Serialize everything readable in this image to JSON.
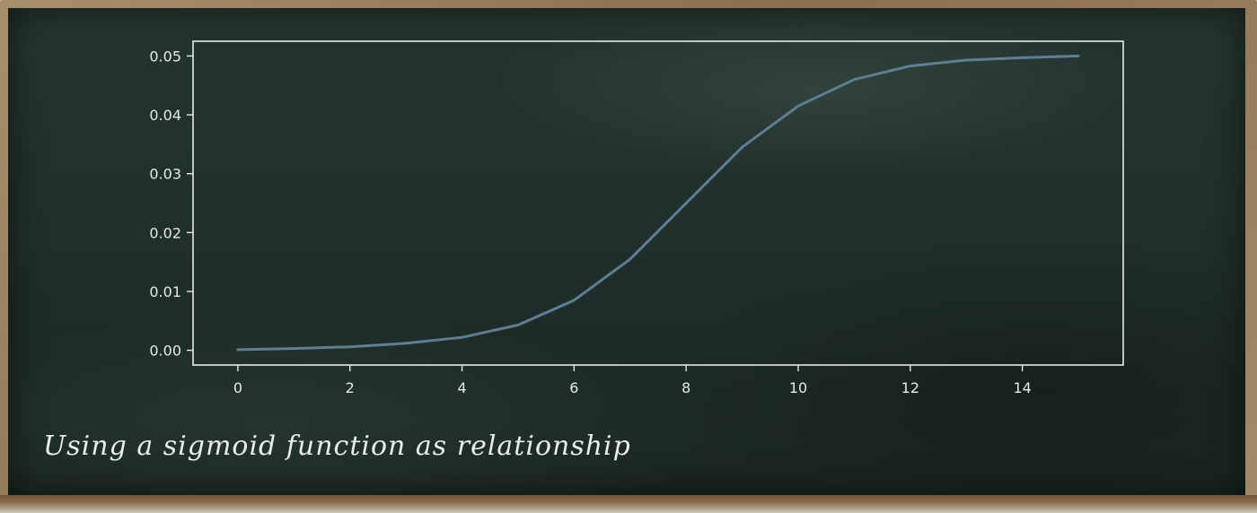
{
  "caption": "Using a sigmoid function as relationship",
  "colors": {
    "line": "#5f7e92",
    "axes": "#e6e9e7",
    "board": "#1f2e2a"
  },
  "chart_data": {
    "type": "line",
    "x": [
      0,
      1,
      2,
      3,
      4,
      5,
      6,
      7,
      8,
      9,
      10,
      11,
      12,
      13,
      14,
      15
    ],
    "series": [
      {
        "values": [
          0.0001,
          0.0003,
          0.0006,
          0.0012,
          0.0022,
          0.0043,
          0.0085,
          0.0155,
          0.025,
          0.0345,
          0.0415,
          0.046,
          0.0483,
          0.0493,
          0.0497,
          0.05
        ]
      }
    ],
    "xlim": [
      -0.8,
      15.8
    ],
    "ylim": [
      -0.0025,
      0.0525
    ],
    "xticks": [
      0,
      2,
      4,
      6,
      8,
      10,
      12,
      14
    ],
    "yticks": [
      0.0,
      0.01,
      0.02,
      0.03,
      0.04,
      0.05
    ],
    "xtick_labels": [
      "0",
      "2",
      "4",
      "6",
      "8",
      "10",
      "12",
      "14"
    ],
    "ytick_labels": [
      "0.00",
      "0.01",
      "0.02",
      "0.03",
      "0.04",
      "0.05"
    ],
    "grid": false,
    "title": "",
    "xlabel": "",
    "ylabel": ""
  }
}
